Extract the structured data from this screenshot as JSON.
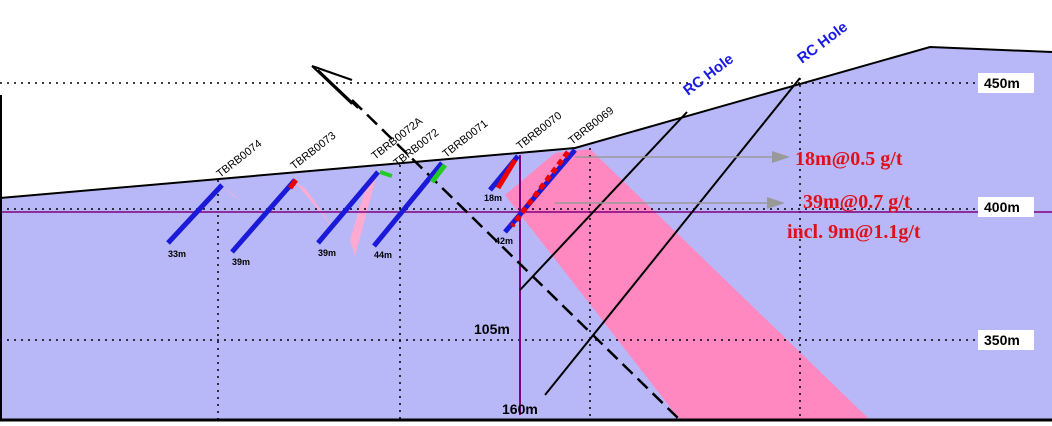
{
  "section": {
    "elevations": [
      "450m",
      "400m",
      "350m"
    ],
    "holes": [
      "TBRB0074",
      "TBRB0073",
      "TBRB0072A",
      "TBRB0072",
      "TBRB0071",
      "TBRB0070",
      "TBRB0069"
    ],
    "hole_depths": [
      "33m",
      "39m",
      "39m",
      "44m",
      "18m",
      "42m"
    ],
    "rc_holes": [
      "RC Hole",
      "RC Hole"
    ],
    "rc_depths": [
      "105m",
      "160m"
    ],
    "annotations": [
      "18m@0.5 g/t",
      "39m@0.7 g/t",
      "incl. 9m@1.1g/t"
    ]
  }
}
